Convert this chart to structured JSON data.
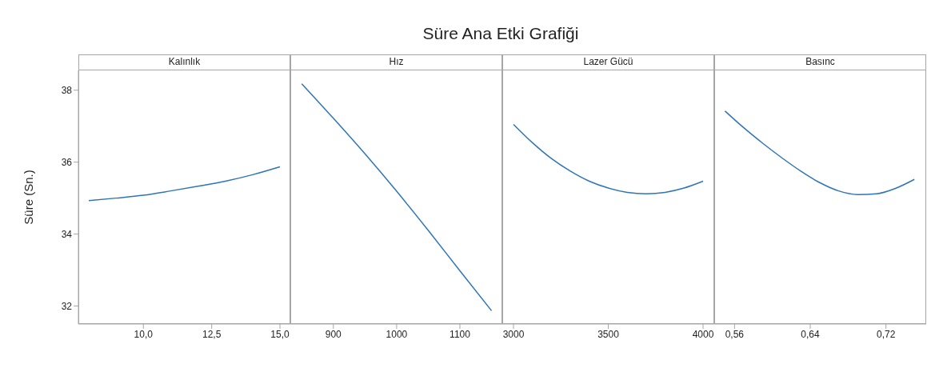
{
  "chart_data": [
    {
      "type": "line",
      "xlabel": "Kalınlık",
      "ylabel": "Süre (Sn.)",
      "x": [
        8,
        9,
        10,
        11,
        12,
        13,
        14,
        15
      ],
      "values": [
        34.93,
        35.0,
        35.08,
        35.2,
        35.33,
        35.47,
        35.65,
        35.87
      ],
      "color": "#2e75b6",
      "xlim": [
        7.62,
        15.38
      ],
      "xticks": [
        {
          "value": 10,
          "label": "10,0"
        },
        {
          "value": 12.5,
          "label": "12,5"
        },
        {
          "value": 15,
          "label": "15,0"
        }
      ],
      "ylim": [
        31.5,
        38.55
      ],
      "yticks": [
        32,
        34,
        36,
        38
      ]
    },
    {
      "type": "line",
      "title": "Süre Ana Etki Grafiği",
      "xlabel": "Hız",
      "x": [
        850,
        900,
        950,
        1000,
        1050,
        1100,
        1150
      ],
      "values": [
        38.18,
        37.22,
        36.23,
        35.19,
        34.1,
        32.98,
        31.87
      ],
      "color": "#2e75b6",
      "xlim": [
        832,
        1167
      ],
      "xticks": [
        900,
        1000,
        1100
      ],
      "ylim": [
        31.5,
        38.55
      ],
      "tick_labels": "x"
    },
    {
      "type": "line",
      "xlabel": "Lazer Gücü",
      "x": [
        3000,
        3100,
        3200,
        3300,
        3400,
        3500,
        3600,
        3700,
        3800,
        3900,
        4000
      ],
      "values": [
        37.05,
        36.54,
        36.1,
        35.75,
        35.47,
        35.28,
        35.16,
        35.12,
        35.16,
        35.28,
        35.47
      ],
      "color": "#2e75b6",
      "xlim": [
        2941,
        4059
      ],
      "xticks": [
        3000,
        3500,
        4000
      ],
      "ylim": [
        31.5,
        38.55
      ],
      "tick_labels": "x"
    },
    {
      "type": "line",
      "xlabel": "Basınc",
      "x": [
        0.55,
        0.57,
        0.59,
        0.61,
        0.63,
        0.65,
        0.67,
        0.69,
        0.71,
        0.73,
        0.75
      ],
      "values": [
        37.42,
        36.95,
        36.52,
        36.12,
        35.75,
        35.43,
        35.2,
        35.1,
        35.12,
        35.27,
        35.52
      ],
      "color": "#2e75b6",
      "xlim": [
        0.5386,
        0.7625
      ],
      "xticks": [
        {
          "value": 0.56,
          "label": "0,56"
        },
        {
          "value": 0.64,
          "label": "0,64"
        },
        {
          "value": 0.72,
          "label": "0,72"
        }
      ],
      "ylim": [
        31.5,
        38.55
      ],
      "tick_labels": "x"
    }
  ]
}
